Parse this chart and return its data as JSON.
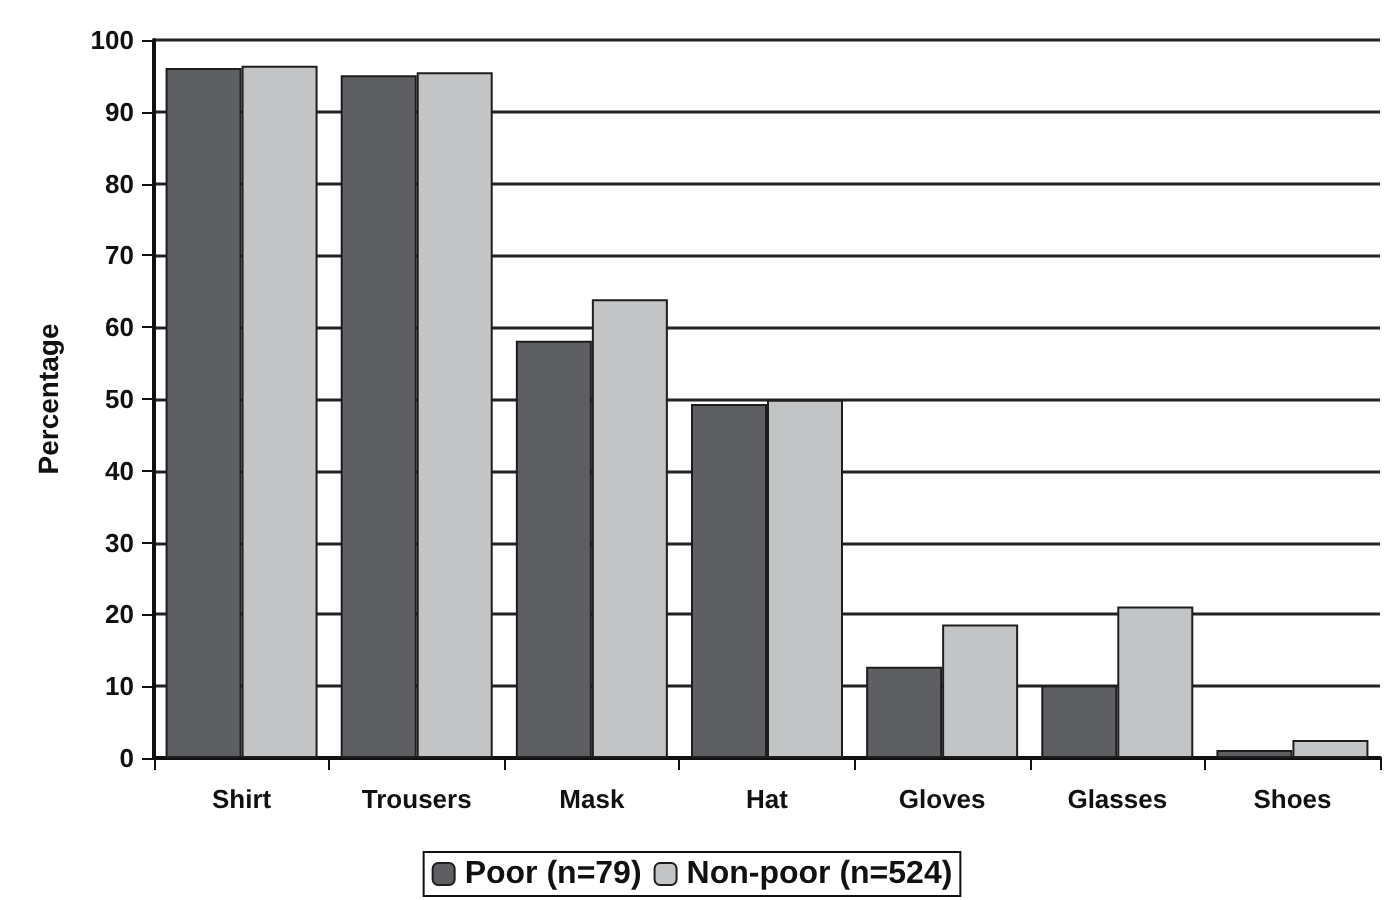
{
  "chart_data": {
    "type": "bar",
    "ylabel": "Percentage",
    "categories": [
      "Shirt",
      "Trousers",
      "Mask",
      "Hat",
      "Gloves",
      "Glasses",
      "Shoes"
    ],
    "series": [
      {
        "name": "Poor (n=79)",
        "color": "#5e5f62",
        "values": [
          96.1,
          95.1,
          58.1,
          49.3,
          12.7,
          10.1,
          1.1
        ]
      },
      {
        "name": "Non-poor (n=524)",
        "color": "#c3c4c6",
        "values": [
          96.4,
          95.5,
          63.9,
          49.9,
          18.6,
          21.1,
          2.5
        ]
      }
    ],
    "ylim": [
      0,
      100
    ],
    "yticks": [
      0,
      10,
      20,
      30,
      40,
      50,
      60,
      70,
      80,
      90,
      100
    ],
    "grid": "y",
    "legend": "bottom"
  }
}
